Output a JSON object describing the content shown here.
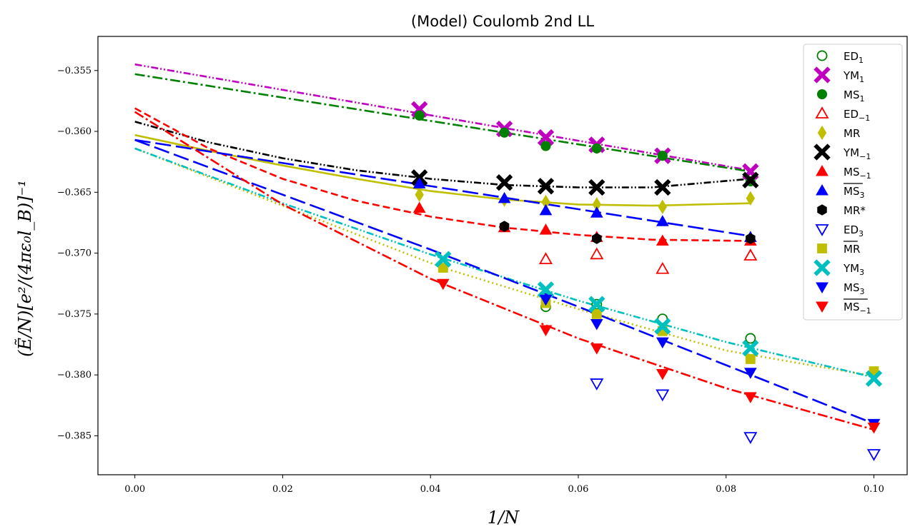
{
  "chart_data": {
    "type": "scatter",
    "title": "(Model) Coulomb 2nd LL",
    "xlabel": "1/N",
    "ylabel": "(Ẽ/N)[e²/(4πε₀l_B)]⁻¹",
    "xlim": [
      -0.005,
      0.1045
    ],
    "ylim": [
      -0.3882,
      -0.3522
    ],
    "xticks": [
      "0.00",
      "0.02",
      "0.04",
      "0.06",
      "0.08",
      "0.10"
    ],
    "yticks": [
      "−0.355",
      "−0.360",
      "−0.365",
      "−0.370",
      "−0.375",
      "−0.380",
      "−0.385"
    ],
    "xtick_values": [
      0.0,
      0.02,
      0.04,
      0.06,
      0.08,
      0.1
    ],
    "ytick_values": [
      -0.355,
      -0.36,
      -0.365,
      -0.37,
      -0.375,
      -0.38,
      -0.385
    ],
    "legend_position": "top-right",
    "grid": false,
    "series": [
      {
        "name": "ED",
        "sub": "1",
        "color": "#008000",
        "marker": "circle-open",
        "x": [
          0.0556,
          0.0625,
          0.0714,
          0.0833
        ],
        "y": [
          -0.3744,
          -0.3742,
          -0.3754,
          -0.377
        ]
      },
      {
        "name": "YM",
        "sub": "1",
        "color": "#bf00bf",
        "marker": "x-filled",
        "x": [
          0.0385,
          0.05,
          0.0556,
          0.0625,
          0.0714,
          0.0833
        ],
        "y": [
          -0.3582,
          -0.3598,
          -0.3605,
          -0.3611,
          -0.362,
          -0.3633
        ],
        "fit": {
          "style": "dashdotdot",
          "points": [
            [
              0,
              -0.3545
            ],
            [
              0.0833,
              -0.3632
            ]
          ]
        }
      },
      {
        "name": "MS",
        "sub": "1",
        "color": "#008000",
        "marker": "circle",
        "x": [
          0.0385,
          0.05,
          0.0556,
          0.0625,
          0.0714,
          0.0833
        ],
        "y": [
          -0.3587,
          -0.3601,
          -0.3612,
          -0.3614,
          -0.362,
          -0.3641
        ],
        "fit": {
          "style": "dashdot",
          "points": [
            [
              0,
              -0.3553
            ],
            [
              0.0833,
              -0.3633
            ]
          ]
        }
      },
      {
        "name": "ED",
        "sub": "−1",
        "color": "#ff0000",
        "marker": "triangle-up-open",
        "x": [
          0.0556,
          0.0625,
          0.0714,
          0.0833
        ],
        "y": [
          -0.3705,
          -0.3701,
          -0.3713,
          -0.3702
        ]
      },
      {
        "name": "MR",
        "sub": "",
        "color": "#bfbf00",
        "marker": "diamond",
        "x": [
          0.0385,
          0.05,
          0.0556,
          0.0625,
          0.0714,
          0.0833
        ],
        "y": [
          -0.3652,
          -0.3656,
          -0.3658,
          -0.366,
          -0.3662,
          -0.3655
        ],
        "fit": {
          "style": "solid",
          "points": [
            [
              0,
              -0.3603
            ],
            [
              0.01,
              -0.3616
            ],
            [
              0.02,
              -0.3628
            ],
            [
              0.03,
              -0.3639
            ],
            [
              0.04,
              -0.3649
            ],
            [
              0.05,
              -0.3656
            ],
            [
              0.06,
              -0.366
            ],
            [
              0.07,
              -0.3661
            ],
            [
              0.0833,
              -0.3659
            ]
          ]
        }
      },
      {
        "name": "YM",
        "sub": "−1",
        "color": "#000000",
        "marker": "x-filled",
        "x": [
          0.0385,
          0.05,
          0.0556,
          0.0625,
          0.0714,
          0.0833
        ],
        "y": [
          -0.3638,
          -0.3642,
          -0.3645,
          -0.3646,
          -0.3646,
          -0.364
        ],
        "fit": {
          "style": "dashdotdot",
          "points": [
            [
              0,
              -0.3592
            ],
            [
              0.01,
              -0.3609
            ],
            [
              0.02,
              -0.3622
            ],
            [
              0.03,
              -0.3632
            ],
            [
              0.04,
              -0.3639
            ],
            [
              0.05,
              -0.3644
            ],
            [
              0.06,
              -0.3646
            ],
            [
              0.07,
              -0.3646
            ],
            [
              0.0833,
              -0.3639
            ]
          ]
        }
      },
      {
        "name": "MS",
        "sub": "−1",
        "color": "#ff0000",
        "marker": "triangle-up",
        "x": [
          0.0385,
          0.05,
          0.0556,
          0.0625,
          0.0714,
          0.0833
        ],
        "y": [
          -0.3663,
          -0.3679,
          -0.3681,
          -0.3687,
          -0.369,
          -0.369
        ],
        "fit": {
          "style": "dashed",
          "points": [
            [
              0,
              -0.3581
            ],
            [
              0.01,
              -0.3614
            ],
            [
              0.02,
              -0.3639
            ],
            [
              0.03,
              -0.3657
            ],
            [
              0.04,
              -0.367
            ],
            [
              0.05,
              -0.3679
            ],
            [
              0.06,
              -0.3685
            ],
            [
              0.07,
              -0.3689
            ],
            [
              0.0833,
              -0.369
            ]
          ]
        }
      },
      {
        "name": "MS",
        "sub": "3",
        "bar": true,
        "color": "#0000ff",
        "marker": "triangle-up",
        "x": [
          0.0385,
          0.05,
          0.0556,
          0.0625,
          0.0714,
          0.0833
        ],
        "y": [
          -0.3643,
          -0.3655,
          -0.3665,
          -0.3667,
          -0.3674,
          -0.3687
        ],
        "fit": {
          "style": "longdash",
          "points": [
            [
              0,
              -0.3607
            ],
            [
              0.0833,
              -0.3686
            ]
          ]
        }
      },
      {
        "name": "MR*",
        "sub": "",
        "color": "#000000",
        "marker": "hexagon",
        "x": [
          0.05,
          0.0625,
          0.0833
        ],
        "y": [
          -0.3678,
          -0.3688,
          -0.3688
        ]
      },
      {
        "name": "ED",
        "sub": "3",
        "color": "#0000ff",
        "marker": "triangle-down-open",
        "x": [
          0.0625,
          0.0714,
          0.0833,
          0.1
        ],
        "y": [
          -0.3807,
          -0.3816,
          -0.3851,
          -0.3865
        ]
      },
      {
        "name": "MR",
        "sub": "",
        "bar": true,
        "color": "#bfbf00",
        "marker": "square",
        "x": [
          0.0417,
          0.0556,
          0.0625,
          0.0714,
          0.0833,
          0.1
        ],
        "y": [
          -0.3712,
          -0.3741,
          -0.375,
          -0.3764,
          -0.3787,
          -0.3797
        ],
        "fit": {
          "style": "dotted",
          "points": [
            [
              0,
              -0.3614
            ],
            [
              0.0417,
              -0.3712
            ],
            [
              0.06,
              -0.3746
            ],
            [
              0.08,
              -0.378
            ],
            [
              0.1,
              -0.3801
            ]
          ]
        }
      },
      {
        "name": "YM",
        "sub": "3",
        "color": "#00bfbf",
        "marker": "x-filled",
        "x": [
          0.0417,
          0.0556,
          0.0625,
          0.0714,
          0.0833,
          0.1
        ],
        "y": [
          -0.3705,
          -0.373,
          -0.3742,
          -0.376,
          -0.3778,
          -0.3803
        ],
        "fit": {
          "style": "dashdotdot",
          "points": [
            [
              0,
              -0.3614
            ],
            [
              0.02,
              -0.3659
            ],
            [
              0.04,
              -0.3701
            ],
            [
              0.06,
              -0.3739
            ],
            [
              0.08,
              -0.3773
            ],
            [
              0.1,
              -0.3802
            ]
          ]
        }
      },
      {
        "name": "MS",
        "sub": "3",
        "color": "#0000ff",
        "marker": "triangle-down",
        "x": [
          0.0556,
          0.0625,
          0.0714,
          0.0833,
          0.1
        ],
        "y": [
          -0.3738,
          -0.3758,
          -0.3773,
          -0.3798,
          -0.384
        ],
        "fit": {
          "style": "longdash",
          "points": [
            [
              0,
              -0.3607
            ],
            [
              0.02,
              -0.3652
            ],
            [
              0.04,
              -0.3697
            ],
            [
              0.06,
              -0.3744
            ],
            [
              0.08,
              -0.3792
            ],
            [
              0.1,
              -0.384
            ]
          ]
        }
      },
      {
        "name": "MS",
        "sub": "−1",
        "bar": true,
        "color": "#ff0000",
        "marker": "triangle-down",
        "x": [
          0.0417,
          0.0556,
          0.0625,
          0.0714,
          0.0833,
          0.1
        ],
        "y": [
          -0.3725,
          -0.3763,
          -0.3778,
          -0.3799,
          -0.3818,
          -0.3843
        ],
        "fit": {
          "style": "dashdot",
          "points": [
            [
              0,
              -0.3584
            ],
            [
              0.02,
              -0.366
            ],
            [
              0.04,
              -0.3721
            ],
            [
              0.06,
              -0.377
            ],
            [
              0.08,
              -0.3811
            ],
            [
              0.1,
              -0.3845
            ]
          ]
        }
      }
    ]
  }
}
